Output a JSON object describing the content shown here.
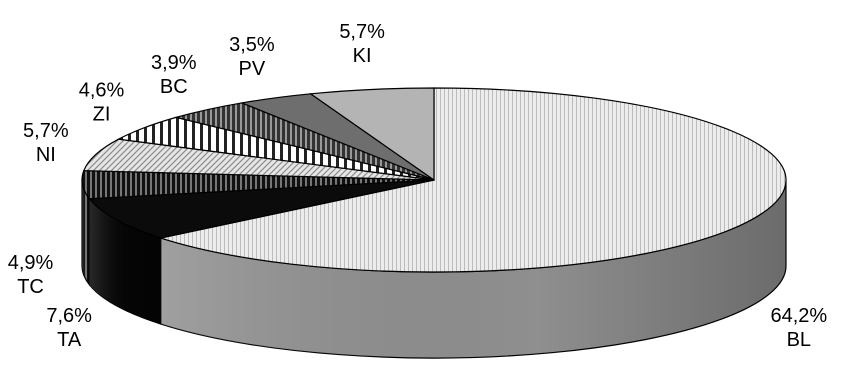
{
  "chart_data": {
    "type": "pie",
    "style": "3d",
    "title": "",
    "slices": [
      {
        "label": "BL",
        "value": 64.2,
        "value_text": "64,2%",
        "fill": "dots-light"
      },
      {
        "label": "TA",
        "value": 7.6,
        "value_text": "7,6%",
        "fill": "black"
      },
      {
        "label": "TC",
        "value": 4.9,
        "value_text": "4,9%",
        "fill": "vertical-stripes-dark"
      },
      {
        "label": "NI",
        "value": 5.7,
        "value_text": "5,7%",
        "fill": "diagonal-hatch-light"
      },
      {
        "label": "ZI",
        "value": 4.6,
        "value_text": "4,6%",
        "fill": "vertical-stripes-light"
      },
      {
        "label": "BC",
        "value": 3.9,
        "value_text": "3,9%",
        "fill": "vertical-stripes-medium"
      },
      {
        "label": "PV",
        "value": 3.5,
        "value_text": "3,5%",
        "fill": "dark-gray"
      },
      {
        "label": "KI",
        "value": 5.7,
        "value_text": "5,7%",
        "fill": "light-gray"
      }
    ]
  }
}
